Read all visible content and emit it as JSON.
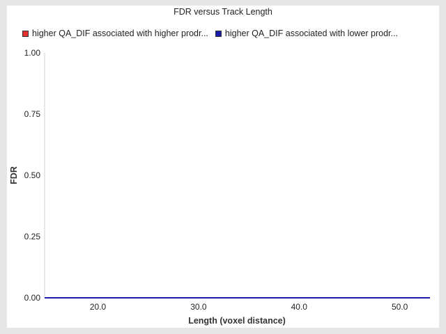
{
  "chart_data": {
    "type": "line",
    "title": "FDR versus Track Length",
    "xlabel": "Length (voxel distance)",
    "ylabel": "FDR",
    "xlim": [
      14.7,
      53.0
    ],
    "ylim": [
      0,
      1
    ],
    "xticks": [
      "20.0",
      "30.0",
      "40.0",
      "50.0"
    ],
    "yticks": [
      "0.00",
      "0.25",
      "0.50",
      "0.75",
      "1.00"
    ],
    "legend_position": "top",
    "grid": false,
    "series": [
      {
        "name": "higher QA_DIF associated with higher prodr...",
        "color": "#e53030",
        "x": [
          14.7,
          53.0
        ],
        "y": [
          0,
          0
        ]
      },
      {
        "name": "higher QA_DIF associated with lower prodr...",
        "color": "#1a1aa8",
        "x": [
          14.7,
          53.0
        ],
        "y": [
          0,
          0
        ]
      }
    ]
  }
}
